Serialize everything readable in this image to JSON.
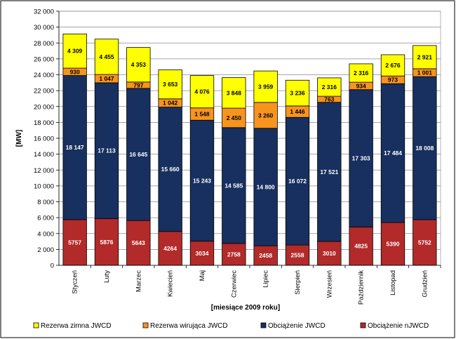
{
  "chart_data": {
    "type": "bar",
    "stacked": true,
    "xlabel": "[miesiące 2009 roku]",
    "ylabel": "[MW]",
    "ylim": [
      0,
      32000
    ],
    "yticks": [
      0,
      2000,
      4000,
      6000,
      8000,
      10000,
      12000,
      14000,
      16000,
      18000,
      20000,
      22000,
      24000,
      26000,
      28000,
      30000,
      32000
    ],
    "tick_labels": [
      "0",
      "2 000",
      "4 000",
      "6 000",
      "8 000",
      "10 000",
      "12 000",
      "14 000",
      "16 000",
      "18 000",
      "20 000",
      "22 000",
      "24 000",
      "26 000",
      "28 000",
      "30 000",
      "32 000"
    ],
    "grid": true,
    "legend_position": "bottom",
    "categories": [
      "Styczeń",
      "Luty",
      "Marzec",
      "Kwiecień",
      "Maj",
      "Czerwiec",
      "Lipiec",
      "Sierpień",
      "Wrzesień",
      "Październik",
      "Listopad",
      "Grudzień"
    ],
    "series": [
      {
        "name": "Obciążenie nJWCD",
        "color": "#b22a2a",
        "label_color": "#ffffff",
        "values": [
          5757,
          5876,
          5643,
          4264,
          3034,
          2758,
          2458,
          2558,
          3010,
          4825,
          5390,
          5752
        ],
        "labels": [
          "5757",
          "5876",
          "5643",
          "4264",
          "3034",
          "2758",
          "2458",
          "2558",
          "3010",
          "4825",
          "5390",
          "5752"
        ]
      },
      {
        "name": "Obciążenie JWCD",
        "color": "#17305f",
        "label_color": "#ffffff",
        "values": [
          18147,
          17113,
          16645,
          15660,
          15243,
          14585,
          14800,
          16072,
          17521,
          17303,
          17484,
          18008
        ],
        "labels": [
          "18 147",
          "17 113",
          "16 645",
          "15 660",
          "15 243",
          "14 585",
          "14 800",
          "16 072",
          "17 521",
          "17 303",
          "17 484",
          "18 008"
        ]
      },
      {
        "name": "Rezerwa wirująca JWCD",
        "color": "#f7941d",
        "label_color": "#000000",
        "values": [
          930,
          1047,
          797,
          1042,
          1548,
          2450,
          3260,
          1446,
          763,
          934,
          973,
          1001
        ],
        "labels": [
          "930",
          "1 047",
          "797",
          "1 042",
          "1 548",
          "2 450",
          "3 260",
          "1 446",
          "763",
          "934",
          "973",
          "1 001"
        ]
      },
      {
        "name": "Rezerwa zimna JWCD",
        "color": "#ffff00",
        "label_color": "#000000",
        "values": [
          4309,
          4455,
          4353,
          3653,
          4076,
          3848,
          3959,
          3236,
          2316,
          2316,
          2676,
          2921
        ],
        "labels": [
          "4 309",
          "4 455",
          "4 353",
          "3 653",
          "4 076",
          "3 848",
          "3 959",
          "3 236",
          "2 316",
          "2 316",
          "2 676",
          "2 921"
        ]
      }
    ],
    "legend_order": [
      "Rezerwa zimna JWCD",
      "Rezerwa wirująca JWCD",
      "Obciążenie JWCD",
      "Obciążenie nJWCD"
    ]
  }
}
